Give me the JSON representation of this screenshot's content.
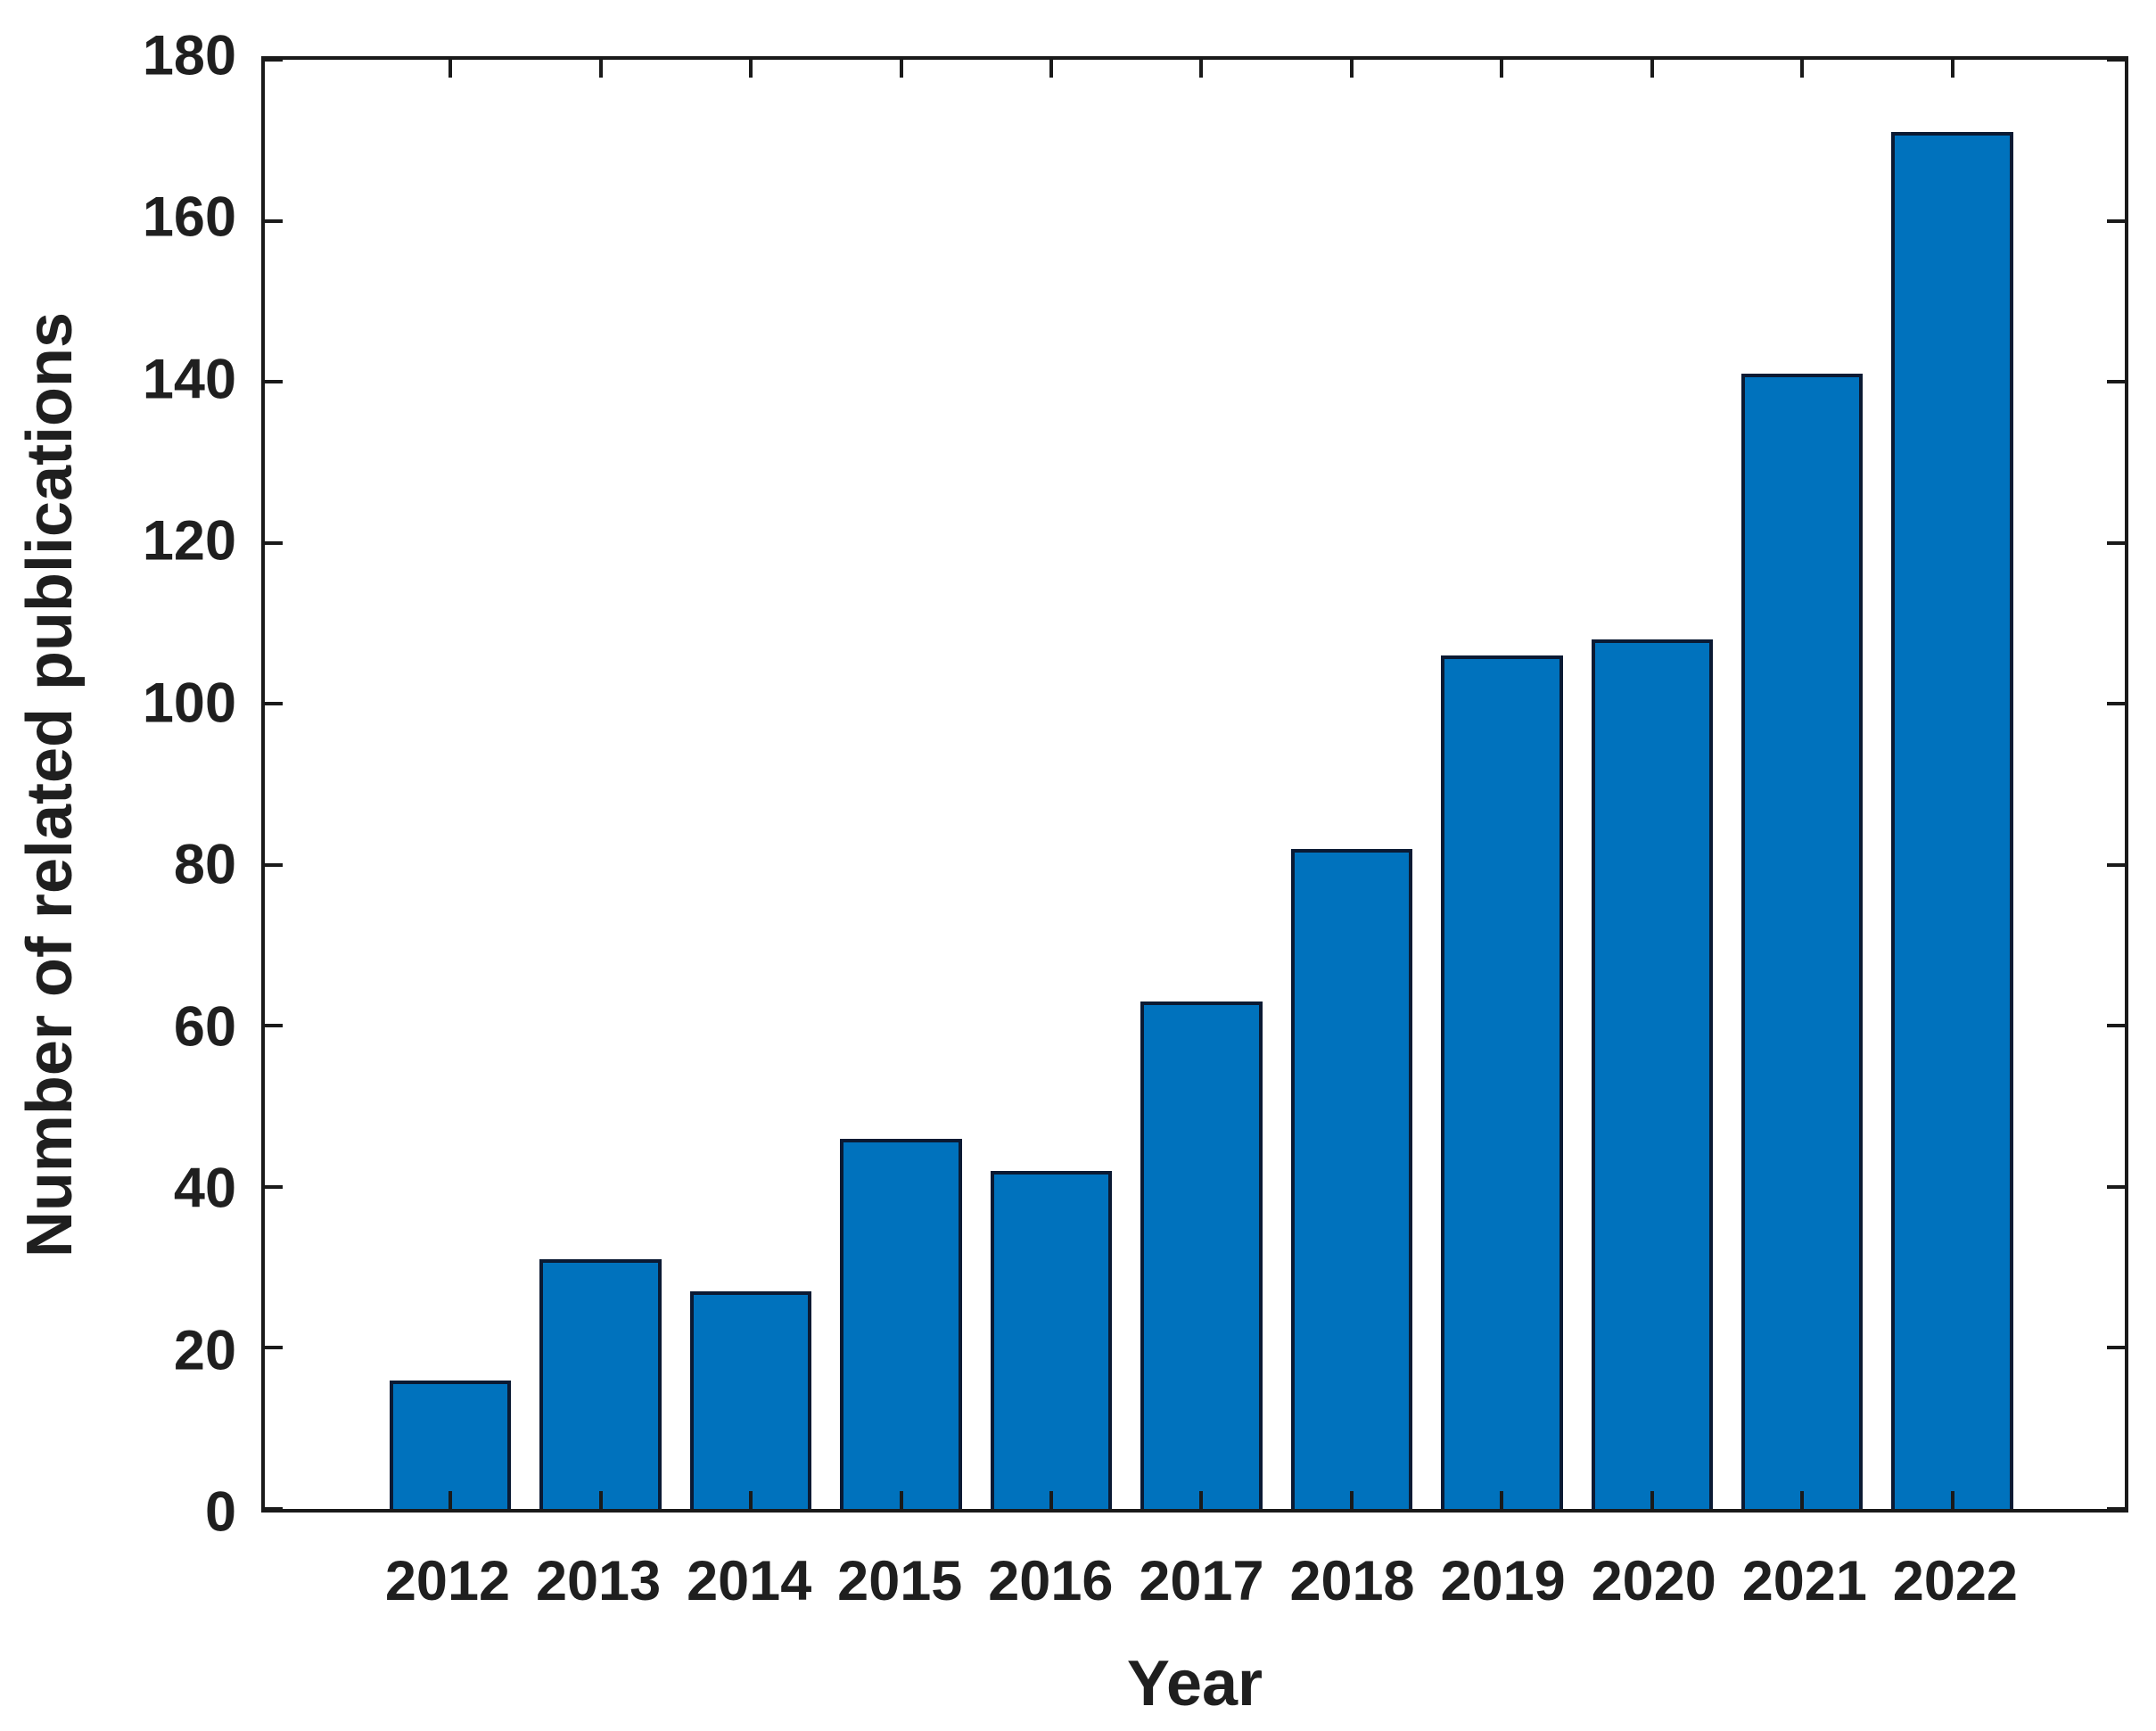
{
  "chart_data": {
    "type": "bar",
    "title": "",
    "categories": [
      "2012",
      "2013",
      "2014",
      "2015",
      "2016",
      "2017",
      "2018",
      "2019",
      "2020",
      "2021",
      "2022"
    ],
    "values": [
      16,
      31,
      27,
      46,
      42,
      63,
      82,
      106,
      108,
      141,
      171
    ],
    "xlabel": "Year",
    "ylabel": "Number of related publications",
    "ylim": [
      0,
      180
    ],
    "yticks": [
      0,
      20,
      40,
      60,
      80,
      100,
      120,
      140,
      160,
      180
    ],
    "grid": false,
    "legend": null,
    "bar_color": "#0072BD",
    "bar_edge_color": "#0b1a33",
    "axis_color": "#1a1a1a",
    "text_color": "#1f1f1f",
    "background": "#ffffff"
  }
}
